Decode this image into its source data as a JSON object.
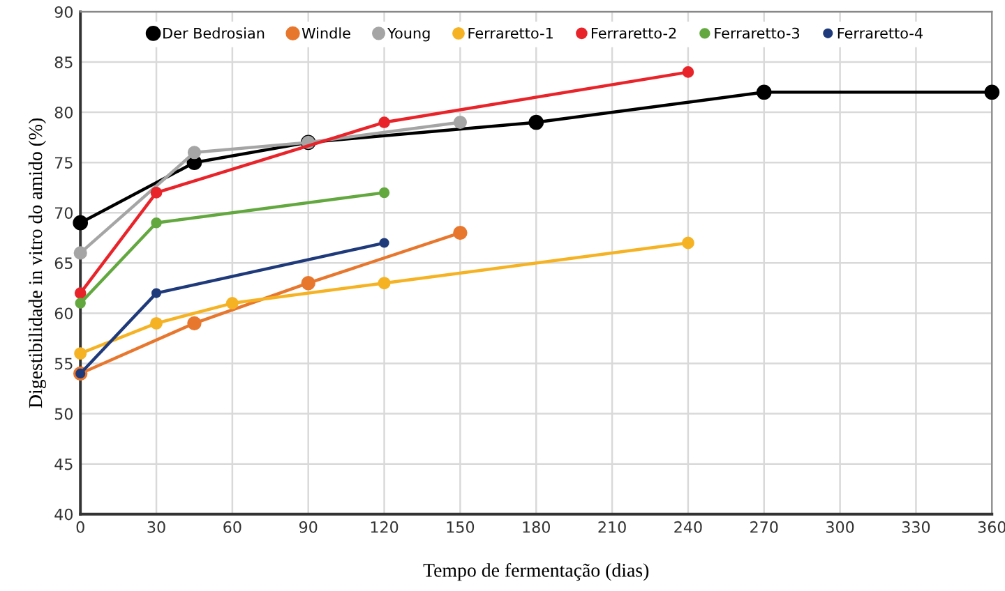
{
  "chart_data": {
    "type": "line",
    "xlabel": "Tempo de fermentação (dias)",
    "ylabel": "Digestibilidade in vitro do amido (%)",
    "xlim": [
      0,
      360
    ],
    "xticks": [
      0,
      30,
      60,
      90,
      120,
      150,
      180,
      210,
      240,
      270,
      300,
      330,
      360
    ],
    "ylim": [
      40,
      90
    ],
    "yticks": [
      40,
      45,
      50,
      55,
      60,
      65,
      70,
      75,
      80,
      85,
      90
    ],
    "grid": true,
    "legend": "top",
    "marker": "circle",
    "line_style": "solid",
    "series": [
      {
        "name": "Der Bedrosian",
        "color": "#000000",
        "x": [
          0,
          45,
          90,
          180,
          270,
          360
        ],
        "values": [
          69,
          75,
          77,
          79,
          82,
          82
        ]
      },
      {
        "name": "Windle",
        "color": "#e8772e",
        "x": [
          0,
          45,
          90,
          150
        ],
        "values": [
          54,
          59,
          63,
          68
        ]
      },
      {
        "name": "Young",
        "color": "#a5a5a5",
        "x": [
          0,
          45,
          90,
          150
        ],
        "values": [
          66,
          76,
          77,
          79
        ]
      },
      {
        "name": "Ferraretto-1",
        "color": "#f5b324",
        "x": [
          0,
          30,
          60,
          120,
          240
        ],
        "values": [
          56,
          59,
          61,
          63,
          67
        ]
      },
      {
        "name": "Ferraretto-2",
        "color": "#e8242a",
        "x": [
          0,
          30,
          120,
          240
        ],
        "values": [
          62,
          72,
          79,
          84
        ]
      },
      {
        "name": "Ferraretto-3",
        "color": "#62a83f",
        "x": [
          0,
          30,
          120
        ],
        "values": [
          61,
          69,
          72
        ]
      },
      {
        "name": "Ferraretto-4",
        "color": "#1f3a7a",
        "x": [
          0,
          30,
          120
        ],
        "values": [
          54,
          62,
          67
        ]
      }
    ]
  }
}
